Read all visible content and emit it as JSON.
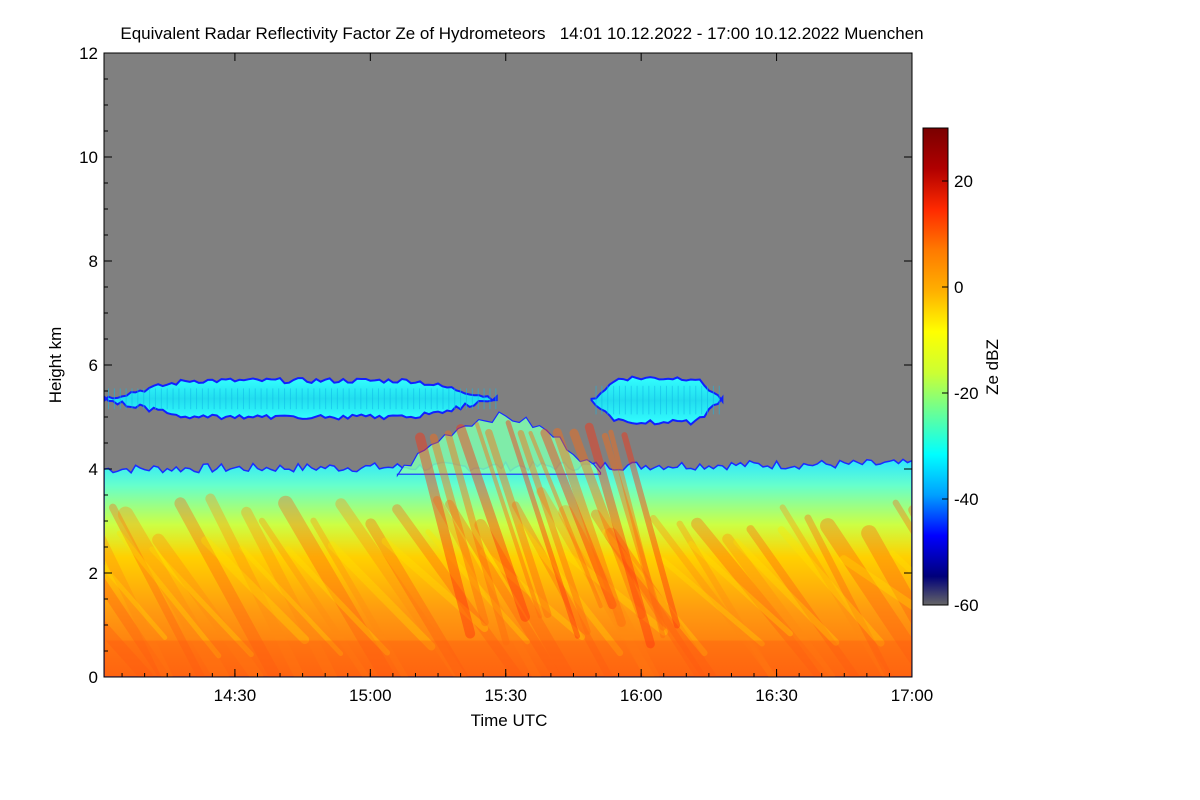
{
  "chart_data": {
    "type": "heatmap",
    "title": "Equivalent Radar Reflectivity Factor Ze of Hydrometeors   14:01 10.12.2022 - 17:00 10.12.2022 Muenchen",
    "xlabel": "Time UTC",
    "ylabel": "Height km",
    "x_range_minutes": [
      0,
      179
    ],
    "x_ticks": [
      {
        "label": "14:30",
        "minute": 29
      },
      {
        "label": "15:00",
        "minute": 59
      },
      {
        "label": "15:30",
        "minute": 89
      },
      {
        "label": "16:00",
        "minute": 119
      },
      {
        "label": "16:30",
        "minute": 149
      },
      {
        "label": "17:00",
        "minute": 179
      }
    ],
    "ylim": [
      0,
      12
    ],
    "y_ticks": [
      0,
      2,
      4,
      6,
      8,
      10,
      12
    ],
    "colorbar": {
      "label": "Ze dBZ",
      "range": [
        -60,
        30
      ],
      "ticks": [
        -60,
        -40,
        -20,
        0,
        20
      ]
    },
    "colors": {
      "background_no_signal": "#808080",
      "colorbar_bottom": "#666666",
      "cmap": [
        "#00007a",
        "#0000ff",
        "#00a0ff",
        "#00ffff",
        "#66ff99",
        "#ccff33",
        "#ffff00",
        "#ffb000",
        "#ff7a00",
        "#ff2a00",
        "#b00000",
        "#7a0000"
      ]
    },
    "features": [
      {
        "name": "precipitation layer",
        "from_minute": 0,
        "to_minute": 179,
        "top_km": [
          4.0,
          4.1
        ],
        "base_km": 0
      },
      {
        "name": "fall streaks",
        "from_minute": 65,
        "to_minute": 110,
        "top_km": 5.0
      },
      {
        "name": "upper cloud layer",
        "from_minute": 0,
        "to_minute": 87,
        "base_km": 5.0,
        "top_km": 5.7
      },
      {
        "name": "upper cloud layer",
        "from_minute": 108,
        "to_minute": 137,
        "base_km": 4.9,
        "top_km": 5.75
      }
    ]
  }
}
